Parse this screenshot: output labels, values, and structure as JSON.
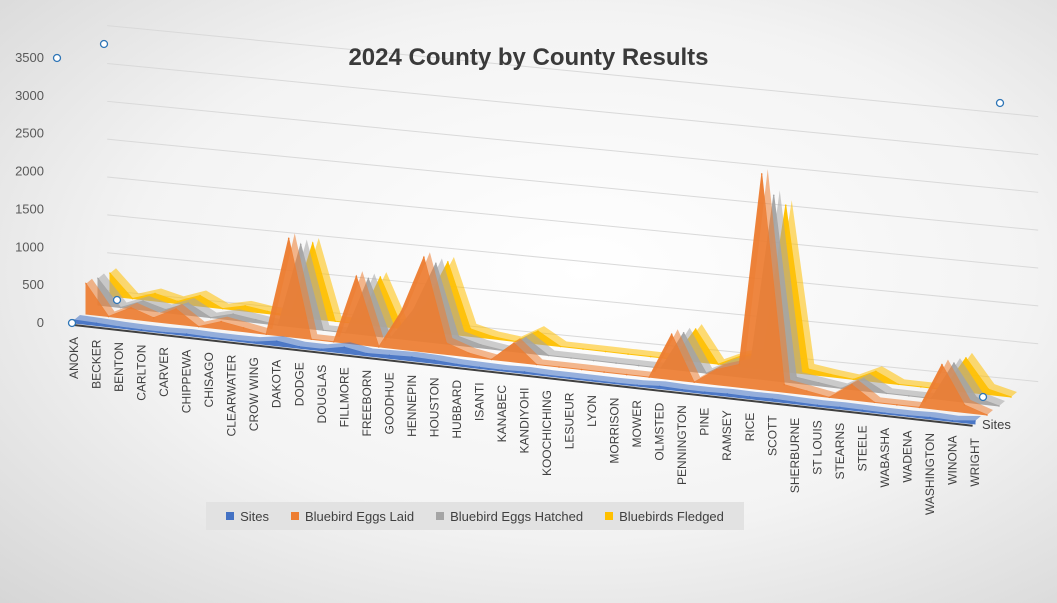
{
  "chart_data": {
    "type": "area",
    "title": "2024 County by County Results",
    "depth_axis_label": "Sites",
    "y_ticks": [
      0,
      500,
      1000,
      1500,
      2000,
      2500,
      3000,
      3500
    ],
    "ylim": [
      0,
      3500
    ],
    "categories": [
      "ANOKA",
      "BECKER",
      "BENTON",
      "CARLTON",
      "CARVER",
      "CHIPPEWA",
      "CHISAGO",
      "CLEARWATER",
      "CROW WING",
      "DAKOTA",
      "DODGE",
      "DOUGLAS",
      "FILLMORE",
      "FREEBORN",
      "GOODHUE",
      "HENNEPIN",
      "HOUSTON",
      "HUBBARD",
      "ISANTI",
      "KANABEC",
      "KANDIYOHI",
      "KOOCHICHING",
      "LESUEUR",
      "LYON",
      "MORRISON",
      "MOWER",
      "OLMSTED",
      "PENNINGTON",
      "PINE",
      "RAMSEY",
      "RICE",
      "SCOTT",
      "SHERBURNE",
      "ST LOUIS",
      "STEARNS",
      "STEELE",
      "WABASHA",
      "WADENA",
      "WASHINGTON",
      "WINONA",
      "WRIGHT"
    ],
    "series": [
      {
        "name": "Sites",
        "color": "#4472c4",
        "values": [
          40,
          30,
          15,
          10,
          8,
          20,
          12,
          10,
          15,
          60,
          20,
          20,
          80,
          30,
          40,
          50,
          40,
          20,
          15,
          10,
          20,
          10,
          10,
          10,
          8,
          12,
          30,
          20,
          20,
          30,
          25,
          30,
          20,
          15,
          20,
          15,
          10,
          10,
          20,
          10,
          40
        ]
      },
      {
        "name": "Bluebird Eggs Laid",
        "color": "#ed7d31",
        "values": [
          400,
          0,
          150,
          50,
          200,
          0,
          100,
          50,
          0,
          1300,
          0,
          0,
          900,
          0,
          500,
          1250,
          150,
          50,
          0,
          250,
          0,
          0,
          0,
          0,
          0,
          0,
          600,
          0,
          200,
          300,
          2850,
          100,
          50,
          0,
          200,
          0,
          0,
          0,
          600,
          100,
          0
        ]
      },
      {
        "name": "Bluebird Eggs Hatched",
        "color": "#a5a5a5",
        "values": [
          350,
          0,
          120,
          40,
          160,
          0,
          80,
          40,
          0,
          1100,
          0,
          0,
          750,
          0,
          400,
          1050,
          120,
          40,
          0,
          200,
          0,
          0,
          0,
          0,
          0,
          0,
          500,
          0,
          160,
          250,
          2450,
          80,
          40,
          0,
          160,
          0,
          0,
          0,
          500,
          80,
          0
        ]
      },
      {
        "name": "Bluebirds Fledged",
        "color": "#ffc000",
        "values": [
          300,
          0,
          100,
          30,
          140,
          0,
          70,
          30,
          0,
          1000,
          0,
          0,
          650,
          0,
          350,
          950,
          100,
          30,
          0,
          170,
          0,
          0,
          0,
          0,
          0,
          0,
          430,
          0,
          140,
          220,
          2200,
          70,
          30,
          0,
          140,
          0,
          0,
          0,
          450,
          70,
          0
        ]
      }
    ],
    "grid": true,
    "legend_position": "bottom"
  }
}
